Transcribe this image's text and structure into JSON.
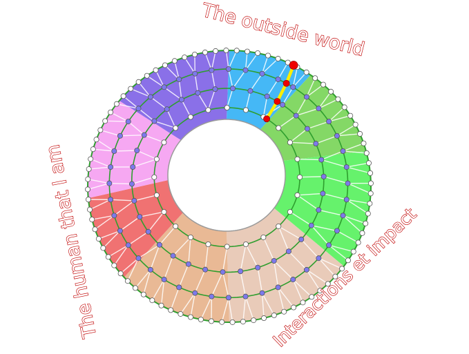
{
  "labels": {
    "top": "The outside world",
    "left": "The human that I am",
    "bottom_right": "Interactions et impact"
  },
  "colors": {
    "label_stroke": "#c00000",
    "ring_line": "#2e9e2e",
    "inner_edge": "#9a9a9a",
    "node_outer": "#ffffff",
    "node_inner": "#7d79ec",
    "path_line": "#ffee00",
    "path_node": "#ee0000",
    "mesh_line": "#ffffff"
  },
  "sectors": [
    {
      "name": "blue",
      "color": "#45b8f6"
    },
    {
      "name": "light-green",
      "color": "#84d866"
    },
    {
      "name": "green",
      "color": "#66f26c"
    },
    {
      "name": "peach",
      "color": "#e9cbb9"
    },
    {
      "name": "tan",
      "color": "#e9b995"
    },
    {
      "name": "red",
      "color": "#f07272"
    },
    {
      "name": "pink",
      "color": "#f6a8f2"
    },
    {
      "name": "purple",
      "color": "#8a70e8"
    }
  ]
}
